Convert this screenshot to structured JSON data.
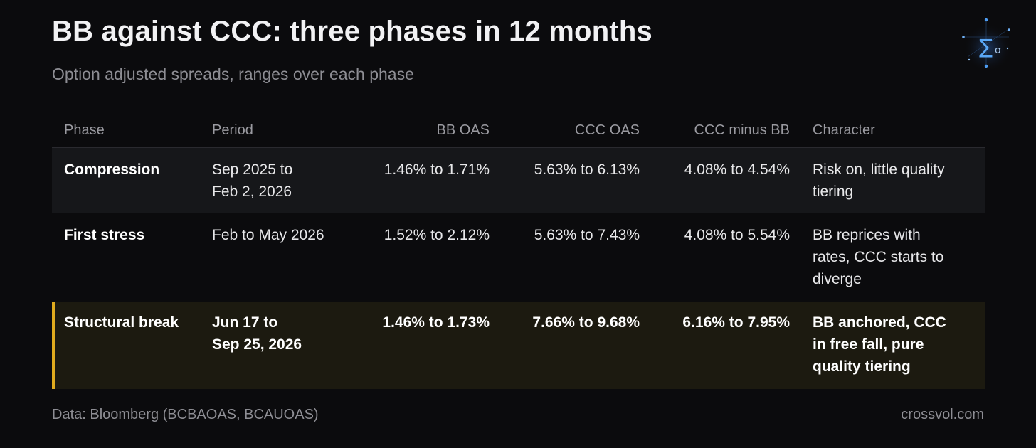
{
  "header": {
    "title": "BB against CCC: three phases in 12 months",
    "subtitle": "Option adjusted spreads, ranges over each phase"
  },
  "logo": {
    "icon": "sigma-constellation-logo",
    "glyph": "∑σ"
  },
  "table": {
    "columns": [
      "Phase",
      "Period",
      "BB OAS",
      "CCC OAS",
      "CCC minus BB",
      "Character"
    ],
    "rows": [
      {
        "phase": "Compression",
        "period_line1": "Sep 2025 to",
        "period_line2": "Feb 2, 2026",
        "bb_oas": "1.46% to 1.71%",
        "ccc_oas": "5.63% to 6.13%",
        "ccc_minus_bb": "4.08% to 4.54%",
        "character_line1": "Risk on, little quality",
        "character_line2": "tiering"
      },
      {
        "phase": "First stress",
        "period_line1": "Feb to May 2026",
        "bb_oas": "1.52% to 2.12%",
        "ccc_oas": "5.63% to 7.43%",
        "ccc_minus_bb": "4.08% to 5.54%",
        "character_line1": "BB reprices with",
        "character_line2": "rates, CCC starts to",
        "character_line3": "diverge"
      },
      {
        "phase": "Structural break",
        "period_line1": "Jun 17 to",
        "period_line2": "Sep 25, 2026",
        "bb_oas": "1.46% to 1.73%",
        "ccc_oas": "7.66% to 9.68%",
        "ccc_minus_bb": "6.16% to 7.95%",
        "character_line1": "BB anchored, CCC",
        "character_line2": "in free fall, pure",
        "character_line3": "quality tiering"
      }
    ]
  },
  "footer": {
    "source": "Data: Bloomberg (BCBAOAS, BCAUOAS)",
    "site": "crossvol.com"
  },
  "colors": {
    "background": "#0b0b0d",
    "row_alt": "#16171a",
    "highlight_row": "#1c1a10",
    "highlight_accent": "#e0ab1e",
    "logo_blue": "#4d9bf0"
  }
}
